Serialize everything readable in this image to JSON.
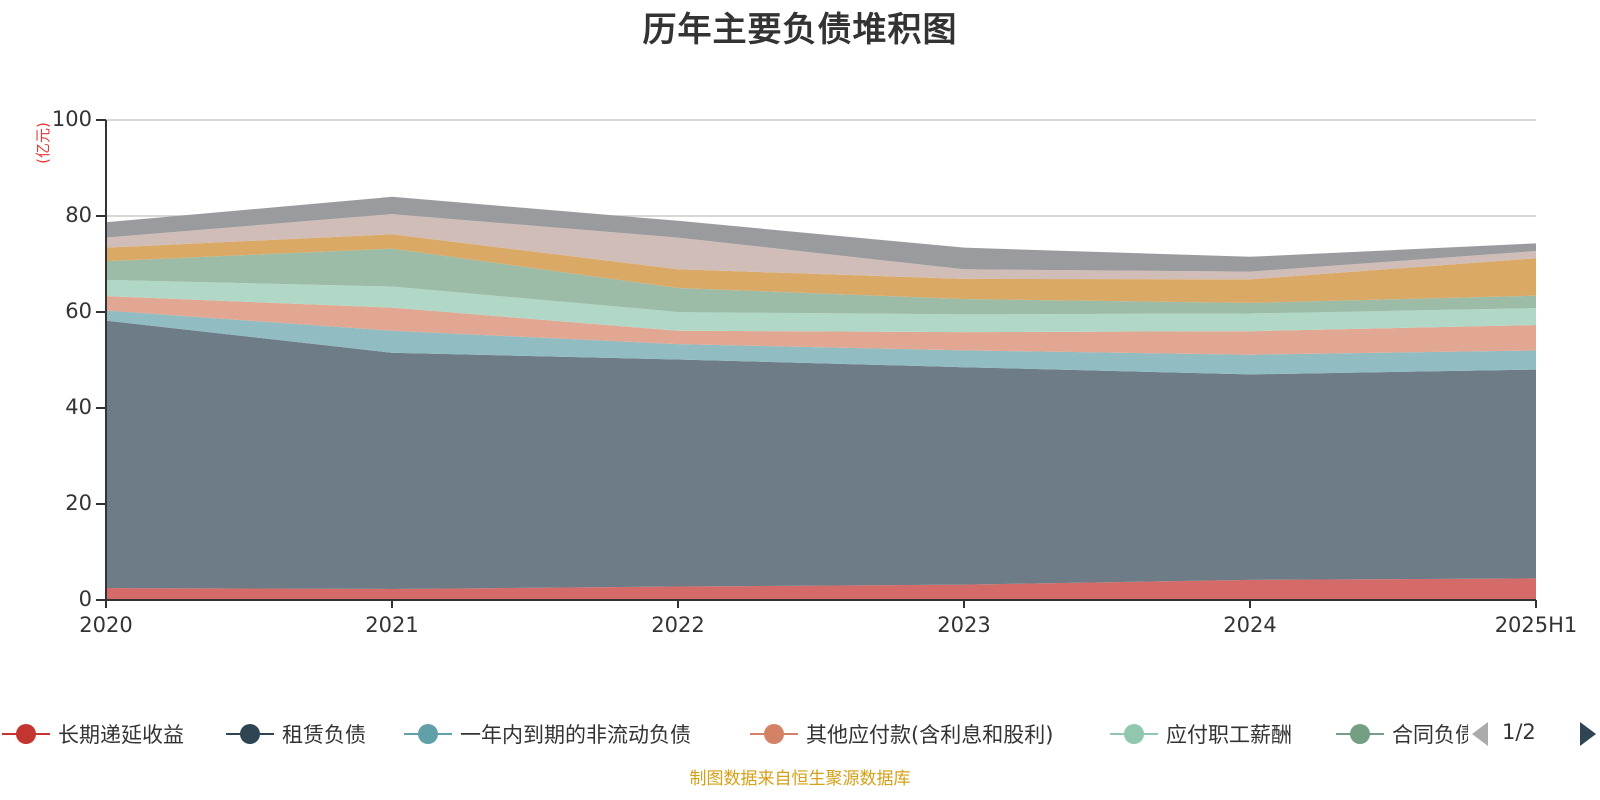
{
  "title": "历年主要负债堆积图",
  "source_note": "制图数据来自恒生聚源数据库",
  "pager": {
    "text": "1/2"
  },
  "chart_data": {
    "type": "area",
    "stacked": true,
    "title": "历年主要负债堆积图",
    "unit": "(亿元)",
    "x": [
      "2020",
      "2021",
      "2022",
      "2023",
      "2024",
      "2025H1"
    ],
    "ylim": [
      0,
      100
    ],
    "yticks": [
      0,
      20,
      40,
      60,
      80,
      100
    ],
    "grid": true,
    "legend_position": "bottom",
    "series": [
      {
        "name": "长期递延收益",
        "color": "#c23531",
        "fill": "#d56b69",
        "values": [
          2.5,
          2.3,
          2.8,
          3.2,
          4.2,
          4.5
        ]
      },
      {
        "name": "租赁负债",
        "color": "#2f4554",
        "fill": "#6d7c87",
        "values": [
          55.7,
          49.2,
          47.3,
          45.3,
          42.8,
          43.5
        ]
      },
      {
        "name": "一年内到期的非流动负债",
        "color": "#61a0a8",
        "fill": "#90bcc2",
        "values": [
          2.1,
          4.6,
          3.2,
          3.5,
          4.1,
          4.0
        ]
      },
      {
        "name": "其他应付款(含利息和股利)",
        "color": "#d48265",
        "fill": "#e1a793",
        "values": [
          3.0,
          4.8,
          2.8,
          3.8,
          4.9,
          5.3
        ]
      },
      {
        "name": "应付职工薪酬",
        "color": "#91c7ae",
        "fill": "#b1d8c6",
        "values": [
          3.4,
          4.4,
          3.9,
          3.7,
          3.7,
          3.5
        ]
      },
      {
        "name": "合同负债",
        "color": "#749f83",
        "fill": "#9dbca7",
        "values": [
          3.9,
          7.9,
          5.0,
          3.2,
          2.2,
          2.6
        ]
      },
      {
        "name": "",
        "color": "#ca8622",
        "fill": "#d9a965",
        "values": [
          2.8,
          3.0,
          3.9,
          4.2,
          4.9,
          7.8
        ]
      },
      {
        "name": "",
        "color": "#bda29a",
        "fill": "#d1bdb7",
        "values": [
          2.1,
          4.2,
          6.6,
          2.0,
          1.6,
          1.5
        ]
      },
      {
        "name": "",
        "color": "#6e7074",
        "fill": "#9a9b9e",
        "values": [
          3.2,
          3.6,
          3.5,
          4.5,
          3.1,
          1.6
        ]
      }
    ]
  }
}
